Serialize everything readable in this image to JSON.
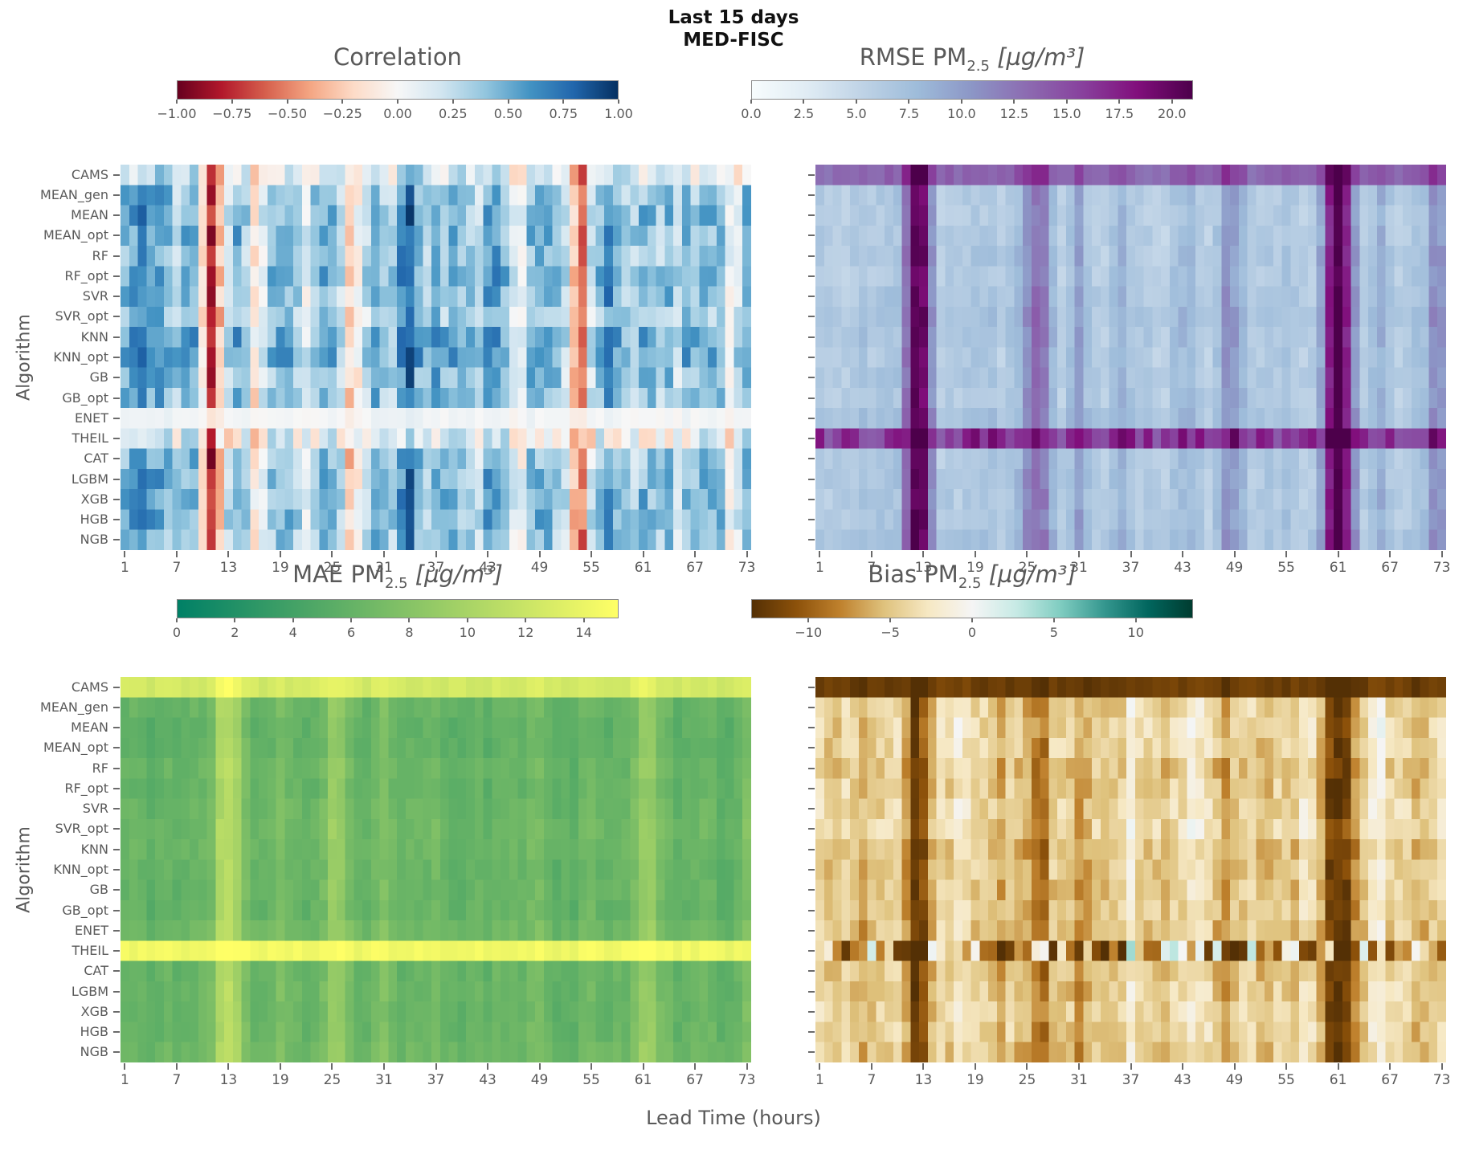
{
  "figure": {
    "title_line1": "Last 15 days",
    "title_line2": "MED-FISC",
    "x_axis_label": "Lead Time (hours)",
    "y_axis_label": "Algorithm",
    "text_color": "#595959",
    "title_color": "#111111",
    "background": "#ffffff"
  },
  "colormaps": {
    "RdBu": [
      [
        0,
        "#67001f"
      ],
      [
        0.1,
        "#b2182b"
      ],
      [
        0.2,
        "#d6604d"
      ],
      [
        0.3,
        "#f4a582"
      ],
      [
        0.4,
        "#fddbc7"
      ],
      [
        0.5,
        "#f7f7f7"
      ],
      [
        0.6,
        "#d1e5f0"
      ],
      [
        0.7,
        "#92c5de"
      ],
      [
        0.8,
        "#4393c3"
      ],
      [
        0.9,
        "#2166ac"
      ],
      [
        1,
        "#053061"
      ]
    ],
    "BuPu": [
      [
        0,
        "#f7fcfd"
      ],
      [
        0.125,
        "#e0ecf4"
      ],
      [
        0.25,
        "#bfd3e6"
      ],
      [
        0.375,
        "#9ebcda"
      ],
      [
        0.5,
        "#8c96c6"
      ],
      [
        0.625,
        "#8c6bb1"
      ],
      [
        0.75,
        "#88419d"
      ],
      [
        0.875,
        "#810f7c"
      ],
      [
        1,
        "#4d004b"
      ]
    ],
    "summer": [
      [
        0,
        "#008066"
      ],
      [
        1,
        "#ffff66"
      ]
    ],
    "BrBG": [
      [
        0,
        "#543005"
      ],
      [
        0.1,
        "#8c510a"
      ],
      [
        0.2,
        "#bf812d"
      ],
      [
        0.3,
        "#dfc27d"
      ],
      [
        0.4,
        "#f6e8c3"
      ],
      [
        0.5,
        "#f5f5f5"
      ],
      [
        0.6,
        "#c7eae5"
      ],
      [
        0.7,
        "#80cdc1"
      ],
      [
        0.8,
        "#35978f"
      ],
      [
        0.9,
        "#01665e"
      ],
      [
        1,
        "#003c30"
      ]
    ]
  },
  "chart_data": {
    "type": "heatmap",
    "y_categories": [
      "CAMS",
      "MEAN_gen",
      "MEAN",
      "MEAN_opt",
      "RF",
      "RF_opt",
      "SVR",
      "SVR_opt",
      "KNN",
      "KNN_opt",
      "GB",
      "GB_opt",
      "ENET",
      "THEIL",
      "CAT",
      "LGBM",
      "XGB",
      "HGB",
      "NGB"
    ],
    "x": {
      "start": 1,
      "end": 73,
      "ticks": [
        1,
        7,
        13,
        19,
        25,
        31,
        37,
        43,
        49,
        55,
        61,
        67,
        73
      ]
    },
    "panels": [
      {
        "key": "correlation",
        "title": {
          "prefix": "Correlation",
          "sub": "",
          "unit": ""
        },
        "colormap": "RdBu",
        "domain": [
          -1,
          1
        ],
        "colorbar": {
          "tick_values": [
            -1,
            -0.75,
            -0.5,
            -0.25,
            0,
            0.25,
            0.5,
            0.75,
            1
          ],
          "tick_labels": [
            "−1.00",
            "−0.75",
            "−0.50",
            "−0.25",
            "0.00",
            "0.25",
            "0.50",
            "0.75",
            "1.00"
          ]
        },
        "row_base": {
          "CAMS": 0.18,
          "MEAN_gen": 0.42,
          "MEAN": 0.48,
          "MEAN_opt": 0.46,
          "RF": 0.44,
          "RF_opt": 0.5,
          "SVR": 0.46,
          "SVR_opt": 0.38,
          "KNN": 0.52,
          "KNN_opt": 0.55,
          "GB": 0.44,
          "GB_opt": 0.42,
          "ENET": 0.04,
          "THEIL": 0.1,
          "CAT": 0.4,
          "LGBM": 0.44,
          "XGB": 0.48,
          "HGB": 0.46,
          "NGB": 0.4
        },
        "col_anomalies": {
          "3": 0.15,
          "11": -1.1,
          "12": -0.35,
          "16": -0.45,
          "22": -0.25,
          "27": -0.65,
          "28": -0.3,
          "34": 0.2,
          "41": -0.2,
          "47": -0.25,
          "53": -0.55,
          "54": -0.6,
          "57": 0.2,
          "59": -0.25,
          "65": -0.2,
          "71": -0.3
        },
        "col_scale": {
          "ENET": 0.15,
          "THEIL": 0.5,
          "CAMS": 0.7
        },
        "cell_noise": 0.17,
        "col_noise": 0.15,
        "row_noise": {
          "THEIL": 0.3,
          "ENET": 0.04,
          "CAMS": 0.25
        },
        "seed": 11
      },
      {
        "key": "rmse",
        "title": {
          "prefix": "RMSE PM",
          "sub": "2.5",
          "unit": " [µg/m³]"
        },
        "colormap": "BuPu",
        "domain": [
          0,
          21
        ],
        "colorbar": {
          "tick_values": [
            0,
            2.5,
            5,
            7.5,
            10,
            12.5,
            15,
            17.5,
            20
          ],
          "tick_labels": [
            "0.0",
            "2.5",
            "5.0",
            "7.5",
            "10.0",
            "12.5",
            "15.0",
            "17.5",
            "20.0"
          ]
        },
        "row_base": {
          "CAMS": 13.5,
          "MEAN_gen": 6.3,
          "MEAN": 6.0,
          "MEAN_opt": 6.1,
          "RF": 6.4,
          "RF_opt": 6.1,
          "SVR": 6.5,
          "SVR_opt": 6.8,
          "KNN": 6.6,
          "KNN_opt": 6.2,
          "GB": 6.4,
          "GB_opt": 6.3,
          "ENET": 6.9,
          "THEIL": 16.5,
          "CAT": 6.4,
          "LGBM": 6.5,
          "XGB": 6.4,
          "HGB": 6.5,
          "NGB": 6.9
        },
        "col_anomalies": {
          "11": 3,
          "12": 9,
          "13": 9.5,
          "25": 3.5,
          "26": 4,
          "27": 3.5,
          "31": 3,
          "36": 2.5,
          "43": 2,
          "48": 3,
          "49": 2.5,
          "60": 7,
          "61": 8.5,
          "62": 7,
          "66": 2,
          "72": 2.5,
          "73": 3
        },
        "col_scale": {
          "CAMS": 0.6,
          "THEIL": 0.5
        },
        "cell_noise": 0.9,
        "col_noise": 0.8,
        "row_noise": {
          "THEIL": 2.5
        },
        "seed": 22
      },
      {
        "key": "mae",
        "title": {
          "prefix": "MAE PM",
          "sub": "2.5",
          "unit": " [µg/m³]"
        },
        "colormap": "summer",
        "domain": [
          0,
          15.2
        ],
        "colorbar": {
          "tick_values": [
            0,
            2,
            4,
            6,
            8,
            10,
            12,
            14
          ],
          "tick_labels": [
            "0",
            "2",
            "4",
            "6",
            "8",
            "10",
            "12",
            "14"
          ]
        },
        "row_base": {
          "CAMS": 12.5,
          "MEAN_gen": 6.0,
          "MEAN": 5.6,
          "MEAN_opt": 5.7,
          "RF": 6.0,
          "RF_opt": 5.8,
          "SVR": 6.1,
          "SVR_opt": 6.3,
          "KNN": 6.2,
          "KNN_opt": 5.9,
          "GB": 6.0,
          "GB_opt": 5.9,
          "ENET": 6.4,
          "THEIL": 14.3,
          "CAT": 6.0,
          "LGBM": 6.1,
          "XGB": 6.0,
          "HGB": 6.1,
          "NGB": 6.4
        },
        "col_anomalies": {
          "12": 2.5,
          "13": 3.2,
          "14": 2,
          "19": 1.8,
          "25": 2.2,
          "26": 1.8,
          "31": 1.2,
          "37": 0.8,
          "49": 1.2,
          "55": 0.8,
          "61": 2.0,
          "62": 1.6,
          "73": 1.2
        },
        "col_scale": {
          "CAMS": 0.5,
          "THEIL": 0.3
        },
        "cell_noise": 0.5,
        "col_noise": 0.5,
        "row_noise": {},
        "seed": 33
      },
      {
        "key": "bias",
        "title": {
          "prefix": "Bias PM",
          "sub": "2.5",
          "unit": " [µg/m³]"
        },
        "colormap": "BrBG",
        "domain": [
          -13.5,
          13.5
        ],
        "colorbar": {
          "tick_values": [
            -10,
            -5,
            0,
            5,
            10
          ],
          "tick_labels": [
            "−10",
            "−5",
            "0",
            "5",
            "10"
          ]
        },
        "row_base": {
          "CAMS": -12.3,
          "MEAN_gen": -4.2,
          "MEAN": -3.8,
          "MEAN_opt": -3.9,
          "RF": -4.8,
          "RF_opt": -4.4,
          "SVR": -3.9,
          "SVR_opt": -3.5,
          "KNN": -4.9,
          "KNN_opt": -4.5,
          "GB": -4.8,
          "GB_opt": -4.4,
          "ENET": -5.0,
          "THEIL": -5.5,
          "CAT": -4.9,
          "LGBM": -4.4,
          "XGB": -3.9,
          "HGB": -4.3,
          "NGB": -4.8
        },
        "col_anomalies": {
          "6": -2,
          "12": -4.5,
          "13": -5,
          "17": 2.5,
          "22": -1.5,
          "26": -3.5,
          "27": -3,
          "31": -2.5,
          "37": 2.0,
          "44": 2.0,
          "48": -2.5,
          "53": -1.5,
          "58": 2.0,
          "60": -4.5,
          "61": -5,
          "62": -4.5,
          "66": 2.0,
          "71": -1.5
        },
        "col_scale": {
          "CAMS": 0.25,
          "THEIL": 0.6
        },
        "cell_noise": 1.6,
        "col_noise": 1.2,
        "row_noise": {
          "THEIL": 8.5,
          "CAMS": 0.8
        },
        "seed": 44
      }
    ]
  }
}
